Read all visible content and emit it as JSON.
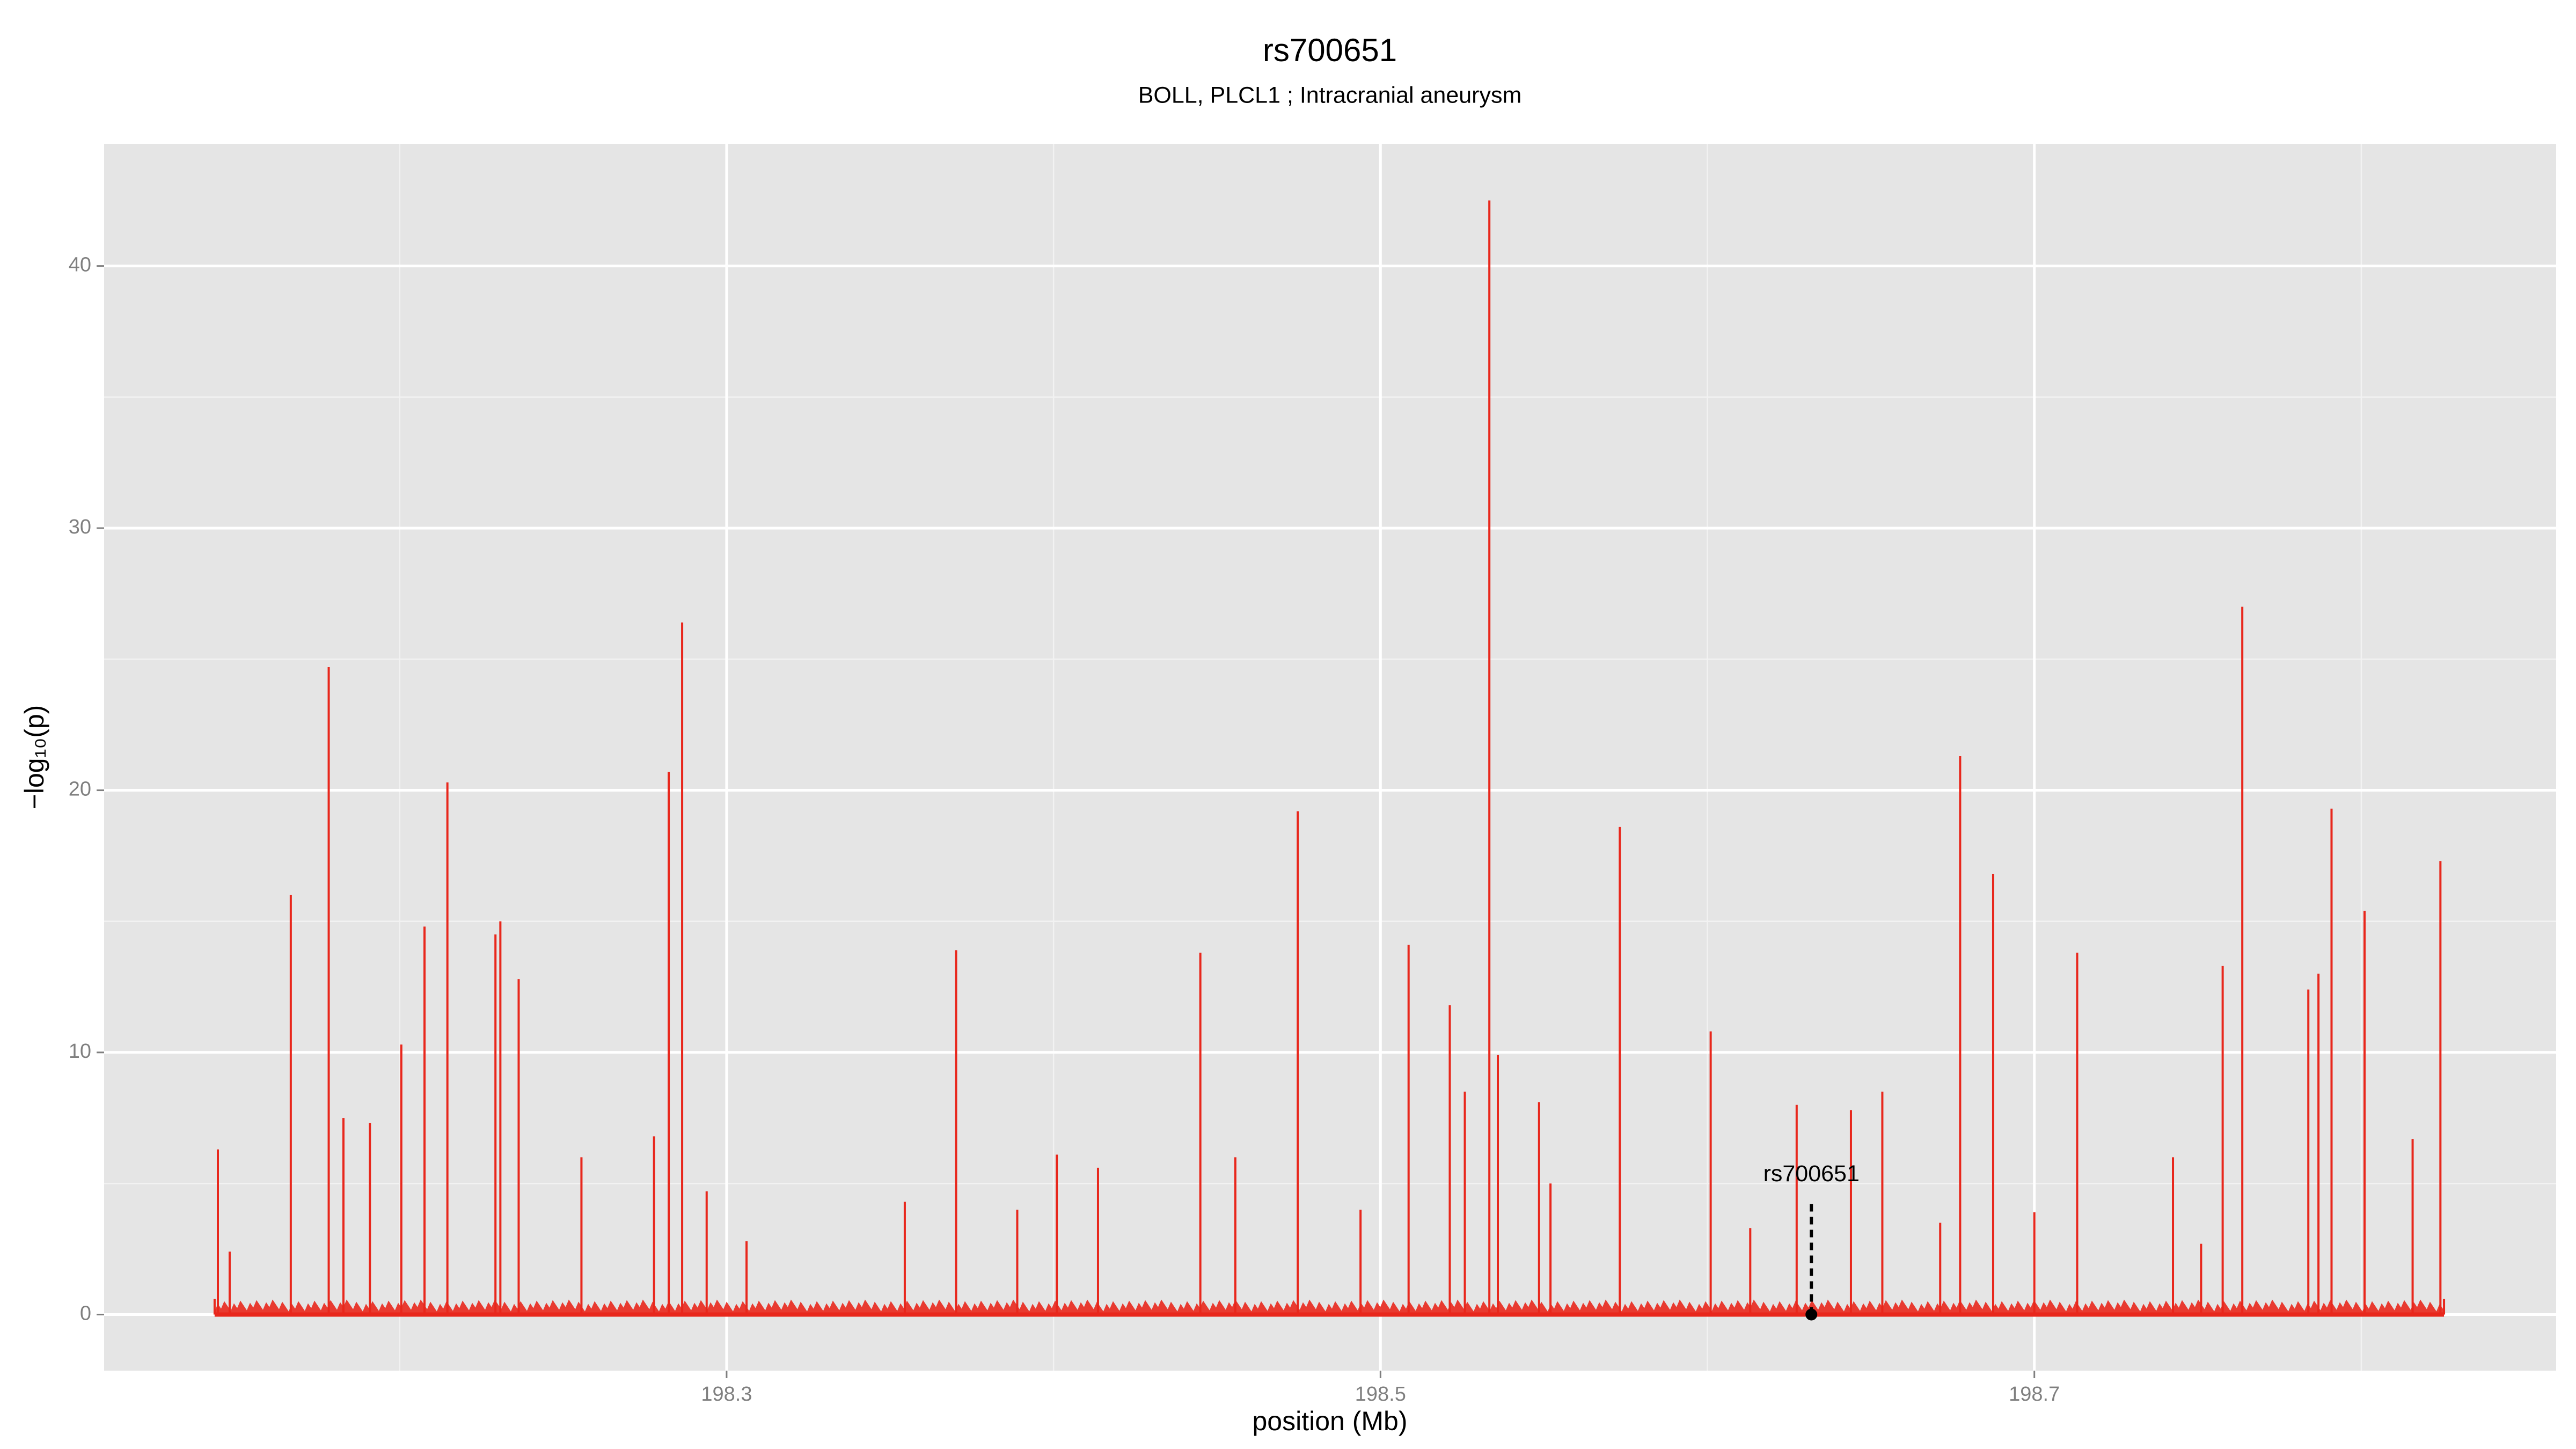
{
  "chart_data": {
    "type": "spike",
    "title": "rs700651",
    "subtitle": "BOLL, PLCL1 ; Intracranial aneurysm",
    "x_label": "position (Mb)",
    "y_label": "−log₁₀(p)",
    "x": [
      198.1434,
      198.1444,
      198.148,
      198.1667,
      198.1783,
      198.1828,
      198.1909,
      198.2005,
      198.2076,
      198.2146,
      198.2293,
      198.2308,
      198.2364,
      198.2556,
      198.2778,
      198.2823,
      198.2864,
      198.2939,
      198.3061,
      198.3545,
      198.3702,
      198.3889,
      198.401,
      198.4136,
      198.4449,
      198.4556,
      198.4747,
      198.4939,
      198.5086,
      198.5212,
      198.5258,
      198.5333,
      198.5359,
      198.5485,
      198.552,
      198.5732,
      198.601,
      198.6131,
      198.6273,
      198.6318,
      198.6439,
      198.6535,
      198.6712,
      198.6773,
      198.6874,
      198.7,
      198.7131,
      198.7424,
      198.751,
      198.7576,
      198.7636,
      198.7838,
      198.7869,
      198.7909,
      198.801,
      198.8157,
      198.8242,
      198.8253
    ],
    "values": [
      0.6,
      6.3,
      2.4,
      16,
      24.7,
      7.5,
      7.3,
      10.3,
      14.8,
      20.3,
      14.5,
      15,
      12.8,
      6,
      6.8,
      20.7,
      26.4,
      4.7,
      2.8,
      4.3,
      13.9,
      4,
      6.1,
      5.6,
      13.8,
      6,
      19.2,
      4,
      14.1,
      11.8,
      8.5,
      42.5,
      9.9,
      8.1,
      5,
      18.6,
      10.8,
      3.3,
      8,
      0,
      7.8,
      8.5,
      3.5,
      21.3,
      16.8,
      3.9,
      13.8,
      6,
      2.7,
      13.3,
      27,
      12.4,
      13,
      19.3,
      15.4,
      6.7,
      17.3,
      0.6
    ],
    "color": "#e8271c",
    "highlight": {
      "label": "rs700651",
      "x": 198.6318,
      "value": 0
    },
    "xlim": [
      198.1096,
      198.8596
    ],
    "xticks": [
      198.3,
      198.5,
      198.7
    ],
    "x_minor_ticks": [
      198.2,
      198.4,
      198.6,
      198.8
    ],
    "ylim": [
      -2.14,
      44.66
    ],
    "yticks": [
      0,
      10,
      20,
      30,
      40
    ],
    "y_minor_ticks": [
      5,
      15,
      25,
      35
    ],
    "grid": true
  }
}
